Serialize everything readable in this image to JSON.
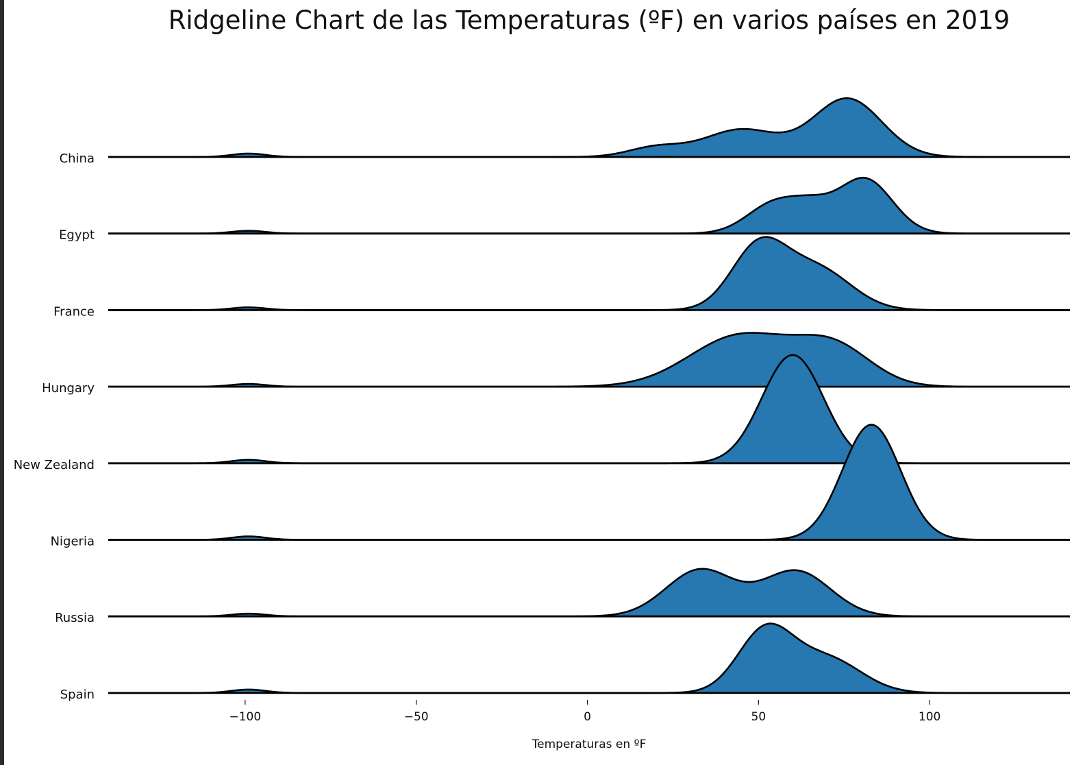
{
  "chart_data": {
    "type": "area",
    "title": "Ridgeline Chart de las Temperaturas (ºF) en varios países en 2019",
    "xlabel": "Temperaturas en ºF",
    "ylabel": "",
    "xlim": [
      -140,
      141
    ],
    "xticks": [
      -100,
      -50,
      0,
      50,
      100
    ],
    "xtick_labels": [
      "−100",
      "−50",
      "0",
      "50",
      "100"
    ],
    "grid": false,
    "fill_color": "#2777b1",
    "line_color": "#000000",
    "baseline_color": "#000000",
    "series": [
      {
        "name": "China",
        "components": [
          {
            "mean": -99,
            "sd": 5,
            "height": 5
          },
          {
            "mean": 20,
            "sd": 8,
            "height": 14
          },
          {
            "mean": 45,
            "sd": 11,
            "height": 40
          },
          {
            "mean": 76,
            "sd": 10,
            "height": 85
          }
        ]
      },
      {
        "name": "Egypt",
        "components": [
          {
            "mean": -99,
            "sd": 5,
            "height": 4
          },
          {
            "mean": 55,
            "sd": 8,
            "height": 45
          },
          {
            "mean": 66,
            "sd": 6,
            "height": 25
          },
          {
            "mean": 81,
            "sd": 8,
            "height": 80
          }
        ]
      },
      {
        "name": "France",
        "components": [
          {
            "mean": -99,
            "sd": 5,
            "height": 4
          },
          {
            "mean": 50,
            "sd": 8,
            "height": 90
          },
          {
            "mean": 67,
            "sd": 10,
            "height": 60
          }
        ]
      },
      {
        "name": "Hungary",
        "components": [
          {
            "mean": -99,
            "sd": 5,
            "height": 4
          },
          {
            "mean": 45,
            "sd": 15,
            "height": 75
          },
          {
            "mean": 72,
            "sd": 11,
            "height": 55
          }
        ]
      },
      {
        "name": "New Zealand",
        "components": [
          {
            "mean": -99,
            "sd": 5,
            "height": 5
          },
          {
            "mean": 60,
            "sd": 9,
            "height": 158
          }
        ]
      },
      {
        "name": "Nigeria",
        "components": [
          {
            "mean": -99,
            "sd": 5,
            "height": 5
          },
          {
            "mean": 83,
            "sd": 8.5,
            "height": 168
          }
        ]
      },
      {
        "name": "Russia",
        "components": [
          {
            "mean": -99,
            "sd": 5,
            "height": 4
          },
          {
            "mean": 33,
            "sd": 10,
            "height": 68
          },
          {
            "mean": 61,
            "sd": 10,
            "height": 66
          }
        ]
      },
      {
        "name": "Spain",
        "components": [
          {
            "mean": -99,
            "sd": 5,
            "height": 5
          },
          {
            "mean": 52,
            "sd": 8,
            "height": 90
          },
          {
            "mean": 70,
            "sd": 10,
            "height": 50
          }
        ]
      }
    ]
  }
}
